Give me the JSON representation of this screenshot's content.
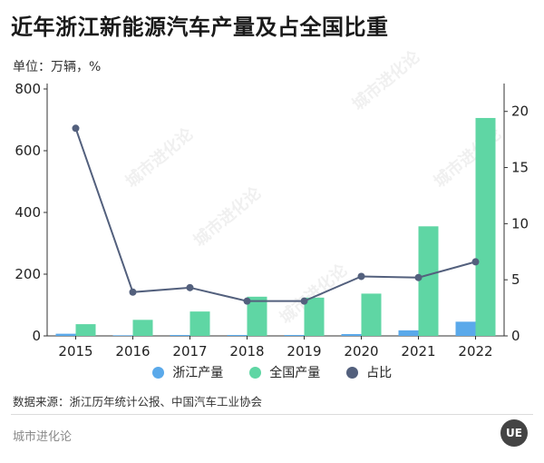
{
  "header": {
    "title": "近年浙江新能源汽车产量及占全国比重",
    "unit_label": "单位：万辆，%"
  },
  "footer": {
    "source": "数据来源：浙江历年统计公报、中国汽车工业协会",
    "brand": "城市进化论",
    "logo_text": "UE",
    "watermark": "城市进化论"
  },
  "colors": {
    "zhejiang": "#5aa9ea",
    "national": "#5fd6a4",
    "share": "#53607d"
  },
  "chart_data": {
    "type": "bar",
    "categories": [
      "2015",
      "2016",
      "2017",
      "2018",
      "2019",
      "2020",
      "2021",
      "2022"
    ],
    "series": [
      {
        "name": "浙江产量",
        "type": "bar",
        "axis": "left",
        "values": [
          7,
          2,
          3,
          3,
          3,
          6,
          18,
          46
        ]
      },
      {
        "name": "全国产量",
        "type": "bar",
        "axis": "left",
        "values": [
          38,
          52,
          79,
          127,
          124,
          137,
          355,
          706
        ]
      },
      {
        "name": "占比",
        "type": "line",
        "axis": "right",
        "values": [
          18.5,
          3.9,
          4.3,
          3.1,
          3.1,
          5.3,
          5.2,
          6.6
        ]
      }
    ],
    "ylim_left": [
      0,
      800
    ],
    "yticks_left": [
      0,
      200,
      400,
      600,
      800
    ],
    "ylim_right": [
      0,
      22
    ],
    "yticks_right": [
      0,
      5,
      10,
      15,
      20
    ],
    "legend_position": "bottom",
    "grid": false
  }
}
